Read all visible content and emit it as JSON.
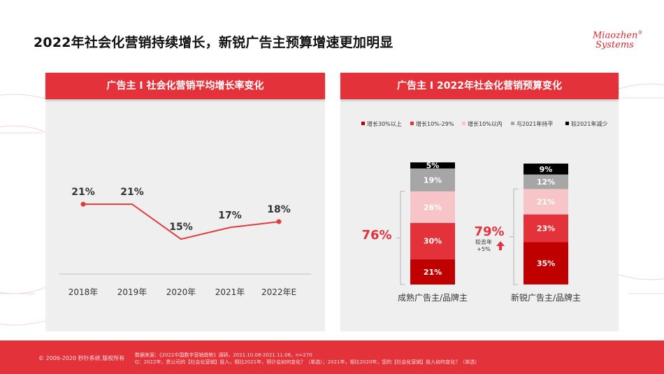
{
  "title": "2022年社会化营销持续增长，新锐广告主预算增速更加明显",
  "logo": {
    "line1": "Miaozhen",
    "line2": "Systems",
    "mark": "®"
  },
  "colors": {
    "accent": "#e3323a",
    "dark_red": "#c00000",
    "mid_red": "#e3323a",
    "pink": "#f7c5c8",
    "gray": "#a6a6a6",
    "black": "#000000",
    "line": "#e03c3c"
  },
  "footer": {
    "copyright": "© 2006-2020 秒针系统 版权所有",
    "source_line1": "数据来源：《2022中国数字营销趋势》调研，2021.10.08-2021.11.08，n=270",
    "source_line2": "Q：2022年，贵公司的【社会化营销】投入，相比2021年，预计会如何变化？（单选）；2021年，相比2020年，您的【社会化营销】投入如何变化？（单选）"
  },
  "chart_data": [
    {
      "type": "line",
      "title": "广告主 I 社会化营销平均增长率变化",
      "categories": [
        "2018年",
        "2019年",
        "2020年",
        "2021年",
        "2022年E"
      ],
      "values": [
        21,
        21,
        15,
        17,
        18
      ],
      "labels": [
        "21%",
        "21%",
        "15%",
        "17%",
        "18%"
      ],
      "ylim": [
        0,
        30
      ],
      "xlabel": "",
      "ylabel": ""
    },
    {
      "type": "bar",
      "stacked": true,
      "title": "广告主 I 2022年社会化营销预算变化",
      "categories": [
        "成熟广告主/品牌主",
        "新锐广告主/品牌主"
      ],
      "series": [
        {
          "name": "增长30%以上",
          "values": [
            21,
            35
          ],
          "color": "#c00000"
        },
        {
          "name": "增长10%-29%",
          "values": [
            30,
            23
          ],
          "color": "#e3323a"
        },
        {
          "name": "增长10%以内",
          "values": [
            26,
            21
          ],
          "color": "#f7c5c8"
        },
        {
          "name": "与2021年持平",
          "values": [
            19,
            12
          ],
          "color": "#a6a6a6"
        },
        {
          "name": "较2021年减少",
          "values": [
            5,
            9
          ],
          "color": "#000000"
        }
      ],
      "growth_totals": [
        "76%",
        "79%"
      ],
      "annotation": {
        "line1": "较去年",
        "line2": "+5%"
      },
      "legend_position": "top"
    }
  ]
}
